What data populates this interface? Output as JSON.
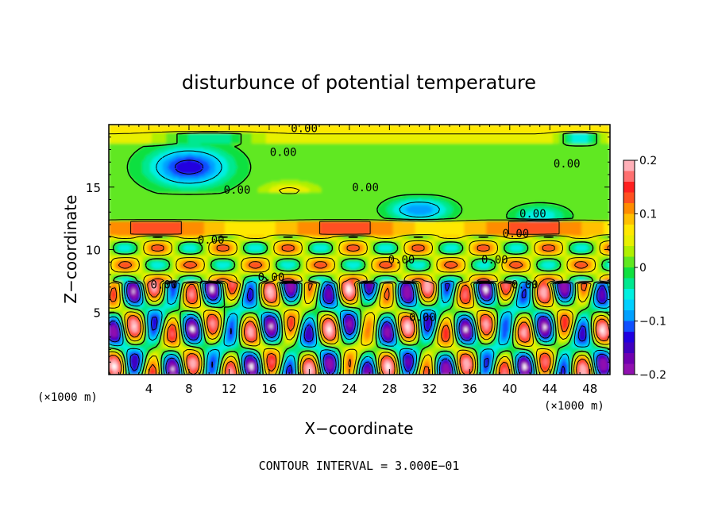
{
  "chart_data": {
    "type": "heatmap",
    "title": "disturbunce of potential temperature",
    "xlabel": "X−coordinate",
    "ylabel": "Z−coordinate",
    "x_unit": "(×1000 m)",
    "z_unit": "(×1000 m)",
    "xlim": [
      0,
      50
    ],
    "zlim": [
      0,
      20
    ],
    "x_ticks": [
      4,
      8,
      12,
      16,
      20,
      24,
      28,
      32,
      36,
      40,
      44,
      48
    ],
    "z_ticks": [
      5,
      10,
      15
    ],
    "colorbar": {
      "min": -0.2,
      "max": 0.2,
      "ticks": [
        0.2,
        0.1,
        0,
        -0.1,
        -0.2
      ],
      "tick_labels": [
        "0.2",
        "0.1",
        "0",
        "−0.1",
        "−0.2"
      ],
      "colors_top_to_bottom": [
        "#ffb0b8",
        "#ff7070",
        "#ff2020",
        "#ff5020",
        "#ff8c00",
        "#ffc000",
        "#ffe800",
        "#e8f000",
        "#b0f000",
        "#60e820",
        "#10e040",
        "#00e890",
        "#00f0e0",
        "#00d0ff",
        "#00a0ff",
        "#1050ff",
        "#2000e0",
        "#4000c0",
        "#7000b0",
        "#9010b0"
      ]
    },
    "contour_interval": "CONTOUR INTERVAL = 3.000E−01",
    "contour_labels": [
      "0.00",
      "0.00",
      "0.00",
      "0.00",
      "0.00",
      "0.00",
      "0.00",
      "0.00",
      "0.00",
      "0.00",
      "0.00",
      "0.00",
      "0.00",
      "0.00"
    ],
    "grid": false
  }
}
